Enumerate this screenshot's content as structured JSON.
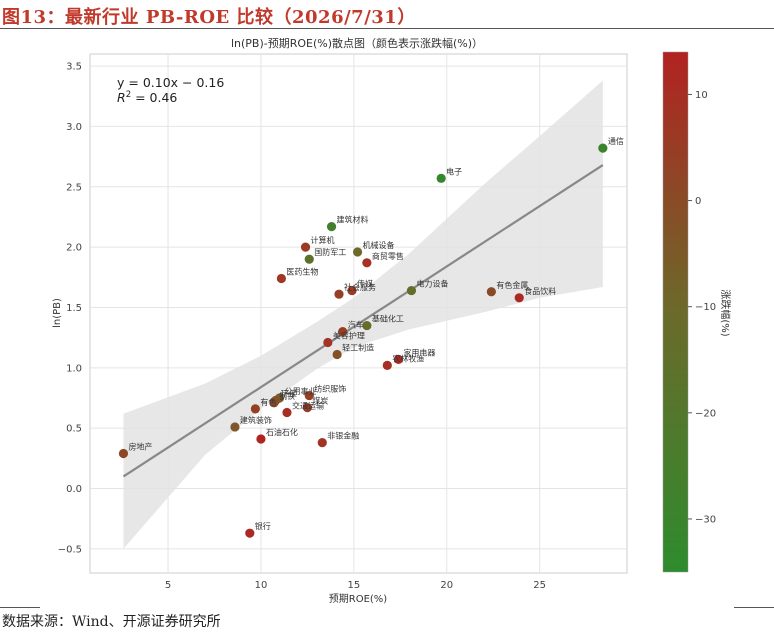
{
  "figure_title": "图13：最新行业 PB-ROE 比较（2026/7/31）",
  "source_note": "数据来源：Wind、开源证券研究所",
  "colors": {
    "title_red": "#c0392b",
    "point_low": "#2e8b2e",
    "point_high": "#b22222",
    "regression_line": "#888888",
    "band": "#e6e6e6"
  },
  "chart_data": {
    "type": "scatter",
    "title": "ln(PB)-预期ROE(%)散点图（颜色表示涨跌幅(%)）",
    "xlabel": "预期ROE(%)",
    "ylabel": "ln(PB)",
    "xlim": [
      0.8,
      29.7
    ],
    "ylim": [
      -0.7,
      3.6
    ],
    "xticks": [
      5,
      10,
      15,
      20,
      25
    ],
    "xtick_labels": [
      "5",
      "10",
      "15",
      "20",
      "25"
    ],
    "yticks": [
      -0.5,
      0.0,
      0.5,
      1.0,
      1.5,
      2.0,
      2.5,
      3.0,
      3.5
    ],
    "ytick_labels": [
      "−0.5",
      "0.0",
      "0.5",
      "1.0",
      "1.5",
      "2.0",
      "2.5",
      "3.0",
      "3.5"
    ],
    "grid": true,
    "equation": "y = 0.10x − 0.16",
    "r2_label": "R",
    "r2_sup": "2",
    "r2_value": " = 0.46",
    "regression": {
      "slope": 0.1,
      "intercept": -0.16,
      "x_range": [
        2.6,
        28.4
      ]
    },
    "confidence_band": [
      {
        "x": 2.6,
        "lower": -0.5,
        "upper": 0.62
      },
      {
        "x": 7,
        "lower": 0.28,
        "upper": 0.87
      },
      {
        "x": 10,
        "lower": 0.66,
        "upper": 1.1
      },
      {
        "x": 13,
        "lower": 0.99,
        "upper": 1.38
      },
      {
        "x": 15,
        "lower": 1.17,
        "upper": 1.58
      },
      {
        "x": 18,
        "lower": 1.32,
        "upper": 1.95
      },
      {
        "x": 22,
        "lower": 1.46,
        "upper": 2.52
      },
      {
        "x": 25,
        "lower": 1.58,
        "upper": 2.92
      },
      {
        "x": 28.4,
        "lower": 1.67,
        "upper": 3.38
      }
    ],
    "colorbar": {
      "label": "涨跌幅(%)",
      "min": -35,
      "max": 14,
      "ticks": [
        -30,
        -20,
        -10,
        0,
        10
      ]
    },
    "points": [
      {
        "name": "通信",
        "x": 28.4,
        "y": 2.82,
        "c": -30
      },
      {
        "name": "电子",
        "x": 19.7,
        "y": 2.57,
        "c": -32
      },
      {
        "name": "建筑材料",
        "x": 13.8,
        "y": 2.17,
        "c": -26
      },
      {
        "name": "计算机",
        "x": 12.4,
        "y": 2.0,
        "c": 6
      },
      {
        "name": "机械设备",
        "x": 15.2,
        "y": 1.96,
        "c": -10
      },
      {
        "name": "国防军工",
        "x": 12.6,
        "y": 1.9,
        "c": -16
      },
      {
        "name": "商贸零售",
        "x": 15.7,
        "y": 1.87,
        "c": 9
      },
      {
        "name": "医药生物",
        "x": 11.1,
        "y": 1.74,
        "c": 7
      },
      {
        "name": "有色金属",
        "x": 22.4,
        "y": 1.63,
        "c": 0
      },
      {
        "name": "电力设备",
        "x": 18.1,
        "y": 1.64,
        "c": -14
      },
      {
        "name": "社会服务",
        "x": 14.2,
        "y": 1.61,
        "c": 4
      },
      {
        "name": "传媒",
        "x": 14.9,
        "y": 1.64,
        "c": 6
      },
      {
        "name": "食品饮料",
        "x": 23.9,
        "y": 1.58,
        "c": 12
      },
      {
        "name": "汽车",
        "x": 14.4,
        "y": 1.3,
        "c": 4
      },
      {
        "name": "基础化工",
        "x": 15.7,
        "y": 1.35,
        "c": -12
      },
      {
        "name": "美容护理",
        "x": 13.6,
        "y": 1.21,
        "c": 8
      },
      {
        "name": "轻工制造",
        "x": 14.1,
        "y": 1.11,
        "c": -2
      },
      {
        "name": "家用电器",
        "x": 17.4,
        "y": 1.07,
        "c": 12
      },
      {
        "name": "农林牧渔",
        "x": 16.8,
        "y": 1.02,
        "c": 10
      },
      {
        "name": "纺织服饰",
        "x": 12.6,
        "y": 0.77,
        "c": 4
      },
      {
        "name": "公用事业",
        "x": 11.0,
        "y": 0.75,
        "c": -6
      },
      {
        "name": "环保",
        "x": 10.8,
        "y": 0.73,
        "c": -2
      },
      {
        "name": "钢铁",
        "x": 10.7,
        "y": 0.71,
        "c": -1
      },
      {
        "name": "煤炭",
        "x": 12.5,
        "y": 0.67,
        "c": 6
      },
      {
        "name": "交通运输",
        "x": 11.4,
        "y": 0.63,
        "c": 10
      },
      {
        "name": "建筑装饰",
        "x": 8.6,
        "y": 0.51,
        "c": -4
      },
      {
        "name": "有色",
        "x": 9.7,
        "y": 0.66,
        "c": 4
      },
      {
        "name": "石油石化",
        "x": 10.0,
        "y": 0.41,
        "c": 13
      },
      {
        "name": "非银金融",
        "x": 13.3,
        "y": 0.38,
        "c": 8
      },
      {
        "name": "房地产",
        "x": 2.6,
        "y": 0.29,
        "c": 1
      },
      {
        "name": "银行",
        "x": 9.4,
        "y": -0.37,
        "c": 12
      }
    ]
  }
}
